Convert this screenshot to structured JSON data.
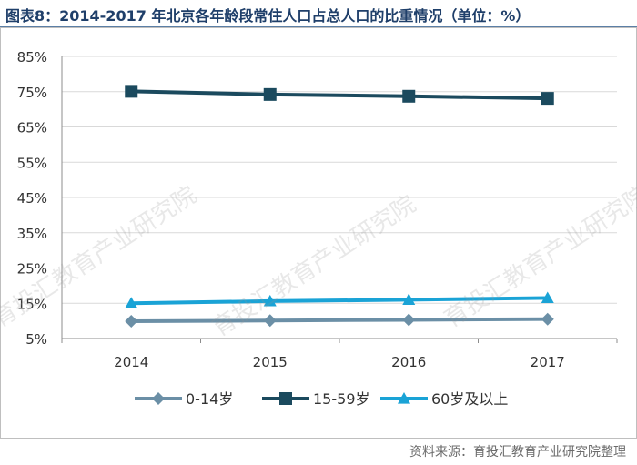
{
  "title": "图表8：2014-2017 年北京各年龄段常住人口占总人口的比重情况（单位：%）",
  "source": "资料来源：育投汇教育产业研究院整理",
  "watermark": "育投汇教育产业研究院",
  "chart_data": {
    "type": "line",
    "categories": [
      "2014",
      "2015",
      "2016",
      "2017"
    ],
    "series": [
      {
        "name": "0-14岁",
        "values": [
          9.9,
          10.1,
          10.3,
          10.5
        ],
        "color": "#6b8fa6",
        "marker": "diamond"
      },
      {
        "name": "15-59岁",
        "values": [
          75.1,
          74.2,
          73.7,
          73.1
        ],
        "color": "#1b4a5e",
        "marker": "square"
      },
      {
        "name": "60岁及以上",
        "values": [
          15.0,
          15.6,
          16.0,
          16.5
        ],
        "color": "#1aa3d6",
        "marker": "triangle"
      }
    ],
    "ylim": [
      5,
      85
    ],
    "yticks": [
      "5%",
      "15%",
      "25%",
      "35%",
      "45%",
      "55%",
      "65%",
      "75%",
      "85%"
    ],
    "grid": true,
    "legend": "bottom"
  }
}
